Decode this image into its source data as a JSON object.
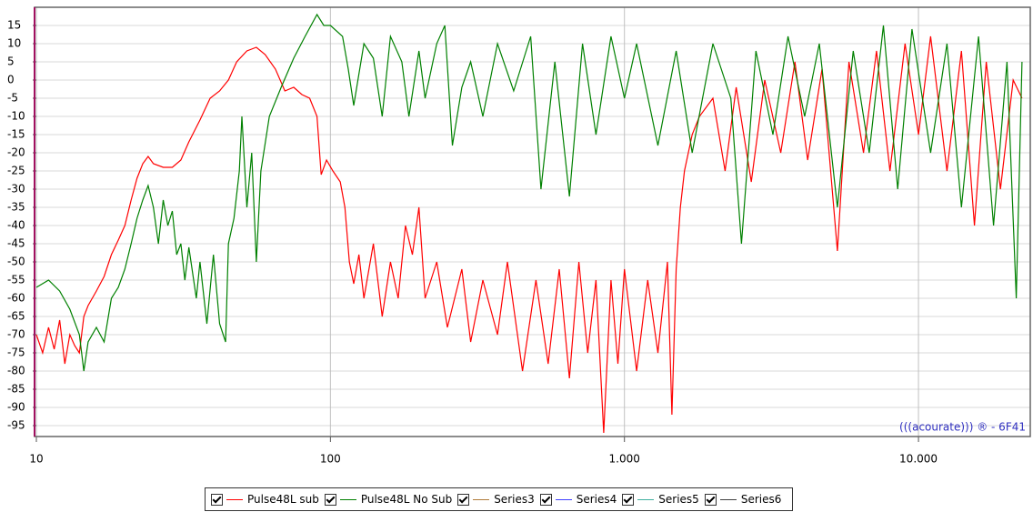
{
  "chart_data": {
    "type": "line",
    "xscale": "log",
    "xlim": [
      10,
      24000
    ],
    "ylim": [
      -98,
      20
    ],
    "yticks": [
      -95,
      -90,
      -85,
      -80,
      -75,
      -70,
      -65,
      -60,
      -55,
      -50,
      -45,
      -40,
      -35,
      -30,
      -25,
      -20,
      -15,
      -10,
      -5,
      0,
      5,
      10,
      15
    ],
    "xticks": [
      10,
      100,
      {
        "value": 1000,
        "label": "1.000"
      },
      {
        "value": 10000,
        "label": "10.000"
      }
    ],
    "grid": true,
    "legend": "bottom",
    "annotation": "(((acourate))) ® - 6F41",
    "series": [
      {
        "name": "Pulse48L sub",
        "color": "#ff0000",
        "x": [
          10,
          10.5,
          11,
          11.5,
          12,
          12.5,
          13,
          13.5,
          14,
          14.5,
          15,
          16,
          17,
          18,
          19,
          20,
          21,
          22,
          23,
          24,
          25,
          27,
          29,
          31,
          33,
          36,
          39,
          42,
          45,
          48,
          52,
          56,
          60,
          65,
          70,
          75,
          80,
          85,
          90,
          93,
          97,
          102,
          108,
          112,
          116,
          120,
          125,
          130,
          140,
          150,
          160,
          170,
          180,
          190,
          200,
          210,
          230,
          250,
          280,
          300,
          330,
          370,
          400,
          450,
          500,
          550,
          600,
          650,
          700,
          750,
          800,
          850,
          900,
          950,
          1000,
          1100,
          1200,
          1300,
          1400,
          1450,
          1500,
          1550,
          1600,
          1700,
          1800,
          2000,
          2200,
          2400,
          2700,
          3000,
          3400,
          3800,
          4200,
          4700,
          5300,
          5800,
          6500,
          7200,
          8000,
          9000,
          10000,
          11000,
          12500,
          14000,
          15500,
          17000,
          19000,
          21000,
          22500
        ],
        "values": [
          -70,
          -75,
          -68,
          -74,
          -66,
          -78,
          -70,
          -73,
          -75,
          -65,
          -62,
          -58,
          -54,
          -48,
          -44,
          -40,
          -33,
          -27,
          -23,
          -21,
          -23,
          -24,
          -24,
          -22,
          -17,
          -11,
          -5,
          -3,
          0,
          5,
          8,
          9,
          7,
          3,
          -3,
          -2,
          -4,
          -5,
          -10,
          -26,
          -22,
          -25,
          -28,
          -35,
          -50,
          -56,
          -48,
          -60,
          -45,
          -65,
          -50,
          -60,
          -40,
          -48,
          -35,
          -60,
          -50,
          -68,
          -52,
          -72,
          -55,
          -70,
          -50,
          -80,
          -55,
          -78,
          -52,
          -82,
          -50,
          -75,
          -55,
          -97,
          -55,
          -78,
          -52,
          -80,
          -55,
          -75,
          -50,
          -92,
          -52,
          -35,
          -25,
          -15,
          -10,
          -5,
          -25,
          -2,
          -28,
          0,
          -20,
          5,
          -22,
          3,
          -47,
          5,
          -20,
          8,
          -25,
          10,
          -15,
          12,
          -25,
          8,
          -40,
          5,
          -30,
          0,
          -5
        ]
      },
      {
        "name": "Pulse48L No Sub",
        "color": "#008000",
        "x": [
          10,
          11,
          12,
          13,
          14,
          14.5,
          15,
          16,
          17,
          18,
          19,
          20,
          21,
          22,
          23,
          24,
          25,
          26,
          27,
          28,
          29,
          30,
          31,
          32,
          33,
          35,
          36,
          38,
          40,
          42,
          44,
          45,
          47,
          49,
          50,
          52,
          54,
          56,
          58,
          62,
          68,
          75,
          82,
          90,
          95,
          100,
          110,
          115,
          120,
          130,
          140,
          150,
          160,
          175,
          185,
          200,
          210,
          230,
          245,
          260,
          280,
          300,
          330,
          370,
          420,
          480,
          520,
          580,
          650,
          720,
          800,
          900,
          1000,
          1100,
          1300,
          1500,
          1700,
          2000,
          2300,
          2500,
          2800,
          3200,
          3600,
          4100,
          4600,
          5300,
          6000,
          6800,
          7600,
          8500,
          9500,
          11000,
          12500,
          14000,
          16000,
          18000,
          20000,
          21500,
          22500
        ],
        "values": [
          -57,
          -55,
          -58,
          -63,
          -70,
          -80,
          -72,
          -68,
          -72,
          -60,
          -57,
          -52,
          -45,
          -38,
          -33,
          -29,
          -35,
          -45,
          -33,
          -40,
          -36,
          -48,
          -45,
          -55,
          -46,
          -60,
          -50,
          -67,
          -48,
          -67,
          -72,
          -45,
          -38,
          -25,
          -10,
          -35,
          -20,
          -50,
          -25,
          -10,
          -2,
          6,
          12,
          18,
          15,
          15,
          12,
          3,
          -7,
          10,
          6,
          -10,
          12,
          5,
          -10,
          8,
          -5,
          10,
          15,
          -18,
          -2,
          5,
          -10,
          10,
          -3,
          12,
          -30,
          5,
          -32,
          10,
          -15,
          12,
          -5,
          10,
          -18,
          8,
          -20,
          10,
          -5,
          -45,
          8,
          -15,
          12,
          -10,
          10,
          -35,
          8,
          -20,
          15,
          -30,
          14,
          -20,
          10,
          -35,
          12,
          -40,
          5,
          -60,
          5
        ]
      },
      {
        "name": "Series3",
        "color": "#b07a3a",
        "x": [],
        "values": []
      },
      {
        "name": "Series4",
        "color": "#4040ff",
        "x": [],
        "values": []
      },
      {
        "name": "Series5",
        "color": "#40b0a0",
        "x": [],
        "values": []
      },
      {
        "name": "Series6",
        "color": "#404040",
        "x": [],
        "values": []
      }
    ]
  }
}
